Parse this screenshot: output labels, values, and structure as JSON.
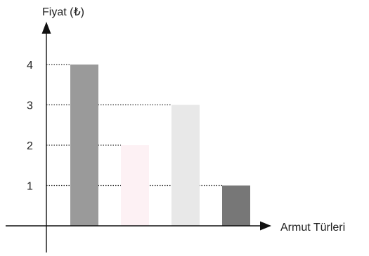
{
  "chart_data": {
    "type": "bar",
    "title": "",
    "xlabel": "Armut Türleri",
    "ylabel": "Fiyat (₺)",
    "yticks": [
      1,
      2,
      3,
      4
    ],
    "ylim": [
      0,
      4
    ],
    "grid": false,
    "values": [
      4,
      2,
      3,
      1
    ],
    "bar_colors": [
      "#9a9a9a",
      "#fdf1f4",
      "#e8e8e8",
      "#777777"
    ]
  }
}
